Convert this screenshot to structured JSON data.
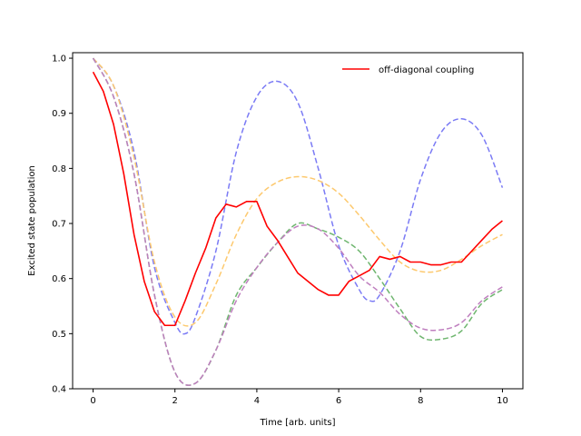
{
  "chart_data": {
    "type": "line",
    "title": "",
    "xlabel": "Time [arb. units]",
    "ylabel": "Excited state population",
    "xlim": [
      -0.5,
      10.5
    ],
    "ylim": [
      0.4,
      1.01
    ],
    "xticks": [
      0,
      2,
      4,
      6,
      8,
      10
    ],
    "yticks": [
      0.4,
      0.5,
      0.6,
      0.7,
      0.8,
      0.9,
      1.0
    ],
    "xtick_labels": [
      "0",
      "2",
      "4",
      "6",
      "8",
      "10"
    ],
    "ytick_labels": [
      "0.4",
      "0.5",
      "0.6",
      "0.7",
      "0.8",
      "0.9",
      "1.0"
    ],
    "legend": {
      "position": "top-right",
      "entries": [
        "off-diagonal coupling"
      ]
    },
    "series": [
      {
        "name": "blue dashed",
        "color": "#7b7bf5",
        "style": "dashed",
        "x": [
          0,
          0.5,
          1,
          1.5,
          2,
          2.25,
          2.5,
          3,
          3.5,
          4,
          4.5,
          5,
          5.5,
          6,
          6.5,
          6.75,
          7,
          7.5,
          8,
          8.5,
          9,
          9.5,
          10
        ],
        "y": [
          1.0,
          0.95,
          0.83,
          0.62,
          0.52,
          0.5,
          0.53,
          0.65,
          0.83,
          0.93,
          0.958,
          0.92,
          0.8,
          0.66,
          0.58,
          0.56,
          0.57,
          0.65,
          0.78,
          0.865,
          0.89,
          0.86,
          0.765
        ]
      },
      {
        "name": "orange dashed",
        "color": "#fdc96e",
        "style": "dashed",
        "x": [
          0,
          0.5,
          1,
          1.5,
          2,
          2.5,
          3,
          3.5,
          4,
          4.5,
          5,
          5.5,
          6,
          6.5,
          7,
          7.5,
          8,
          8.5,
          9,
          9.5,
          10
        ],
        "y": [
          1.0,
          0.95,
          0.82,
          0.63,
          0.53,
          0.52,
          0.59,
          0.68,
          0.745,
          0.775,
          0.785,
          0.778,
          0.755,
          0.715,
          0.67,
          0.63,
          0.613,
          0.615,
          0.635,
          0.66,
          0.68
        ]
      },
      {
        "name": "green dashed",
        "color": "#6fb66f",
        "style": "dashed",
        "x": [
          0,
          0.5,
          1,
          1.5,
          2,
          2.5,
          3,
          3.5,
          4,
          4.5,
          5,
          5.5,
          6,
          6.5,
          7,
          7.5,
          8,
          8.5,
          9,
          9.5,
          10
        ],
        "y": [
          1.0,
          0.93,
          0.79,
          0.57,
          0.43,
          0.41,
          0.47,
          0.57,
          0.62,
          0.665,
          0.7,
          0.69,
          0.675,
          0.65,
          0.6,
          0.545,
          0.495,
          0.49,
          0.505,
          0.555,
          0.58
        ]
      },
      {
        "name": "purple dashed",
        "color": "#bf7fbf",
        "style": "dashed",
        "x": [
          0,
          0.5,
          1,
          1.5,
          2,
          2.5,
          3,
          3.5,
          4,
          4.5,
          5,
          5.5,
          6,
          6.5,
          7,
          7.5,
          8,
          8.5,
          9,
          9.5,
          10
        ],
        "y": [
          1.0,
          0.93,
          0.79,
          0.57,
          0.43,
          0.41,
          0.47,
          0.56,
          0.62,
          0.665,
          0.695,
          0.69,
          0.655,
          0.605,
          0.575,
          0.535,
          0.51,
          0.507,
          0.52,
          0.56,
          0.585
        ]
      },
      {
        "name": "off-diagonal coupling",
        "color": "#ff0000",
        "style": "solid",
        "x": [
          0,
          0.25,
          0.5,
          0.75,
          1,
          1.25,
          1.5,
          1.75,
          2,
          2.25,
          2.5,
          2.75,
          3,
          3.25,
          3.5,
          3.75,
          4,
          4.25,
          4.5,
          4.75,
          5,
          5.25,
          5.5,
          5.75,
          6,
          6.25,
          6.5,
          6.75,
          7,
          7.25,
          7.5,
          7.75,
          8,
          8.25,
          8.5,
          8.75,
          9,
          9.25,
          9.5,
          9.75,
          10
        ],
        "y": [
          0.975,
          0.94,
          0.88,
          0.79,
          0.68,
          0.595,
          0.54,
          0.515,
          0.515,
          0.56,
          0.61,
          0.655,
          0.71,
          0.735,
          0.73,
          0.74,
          0.74,
          0.695,
          0.67,
          0.64,
          0.61,
          0.595,
          0.58,
          0.57,
          0.57,
          0.595,
          0.605,
          0.615,
          0.64,
          0.635,
          0.64,
          0.63,
          0.63,
          0.625,
          0.625,
          0.63,
          0.63,
          0.65,
          0.67,
          0.69,
          0.705
        ]
      }
    ]
  }
}
